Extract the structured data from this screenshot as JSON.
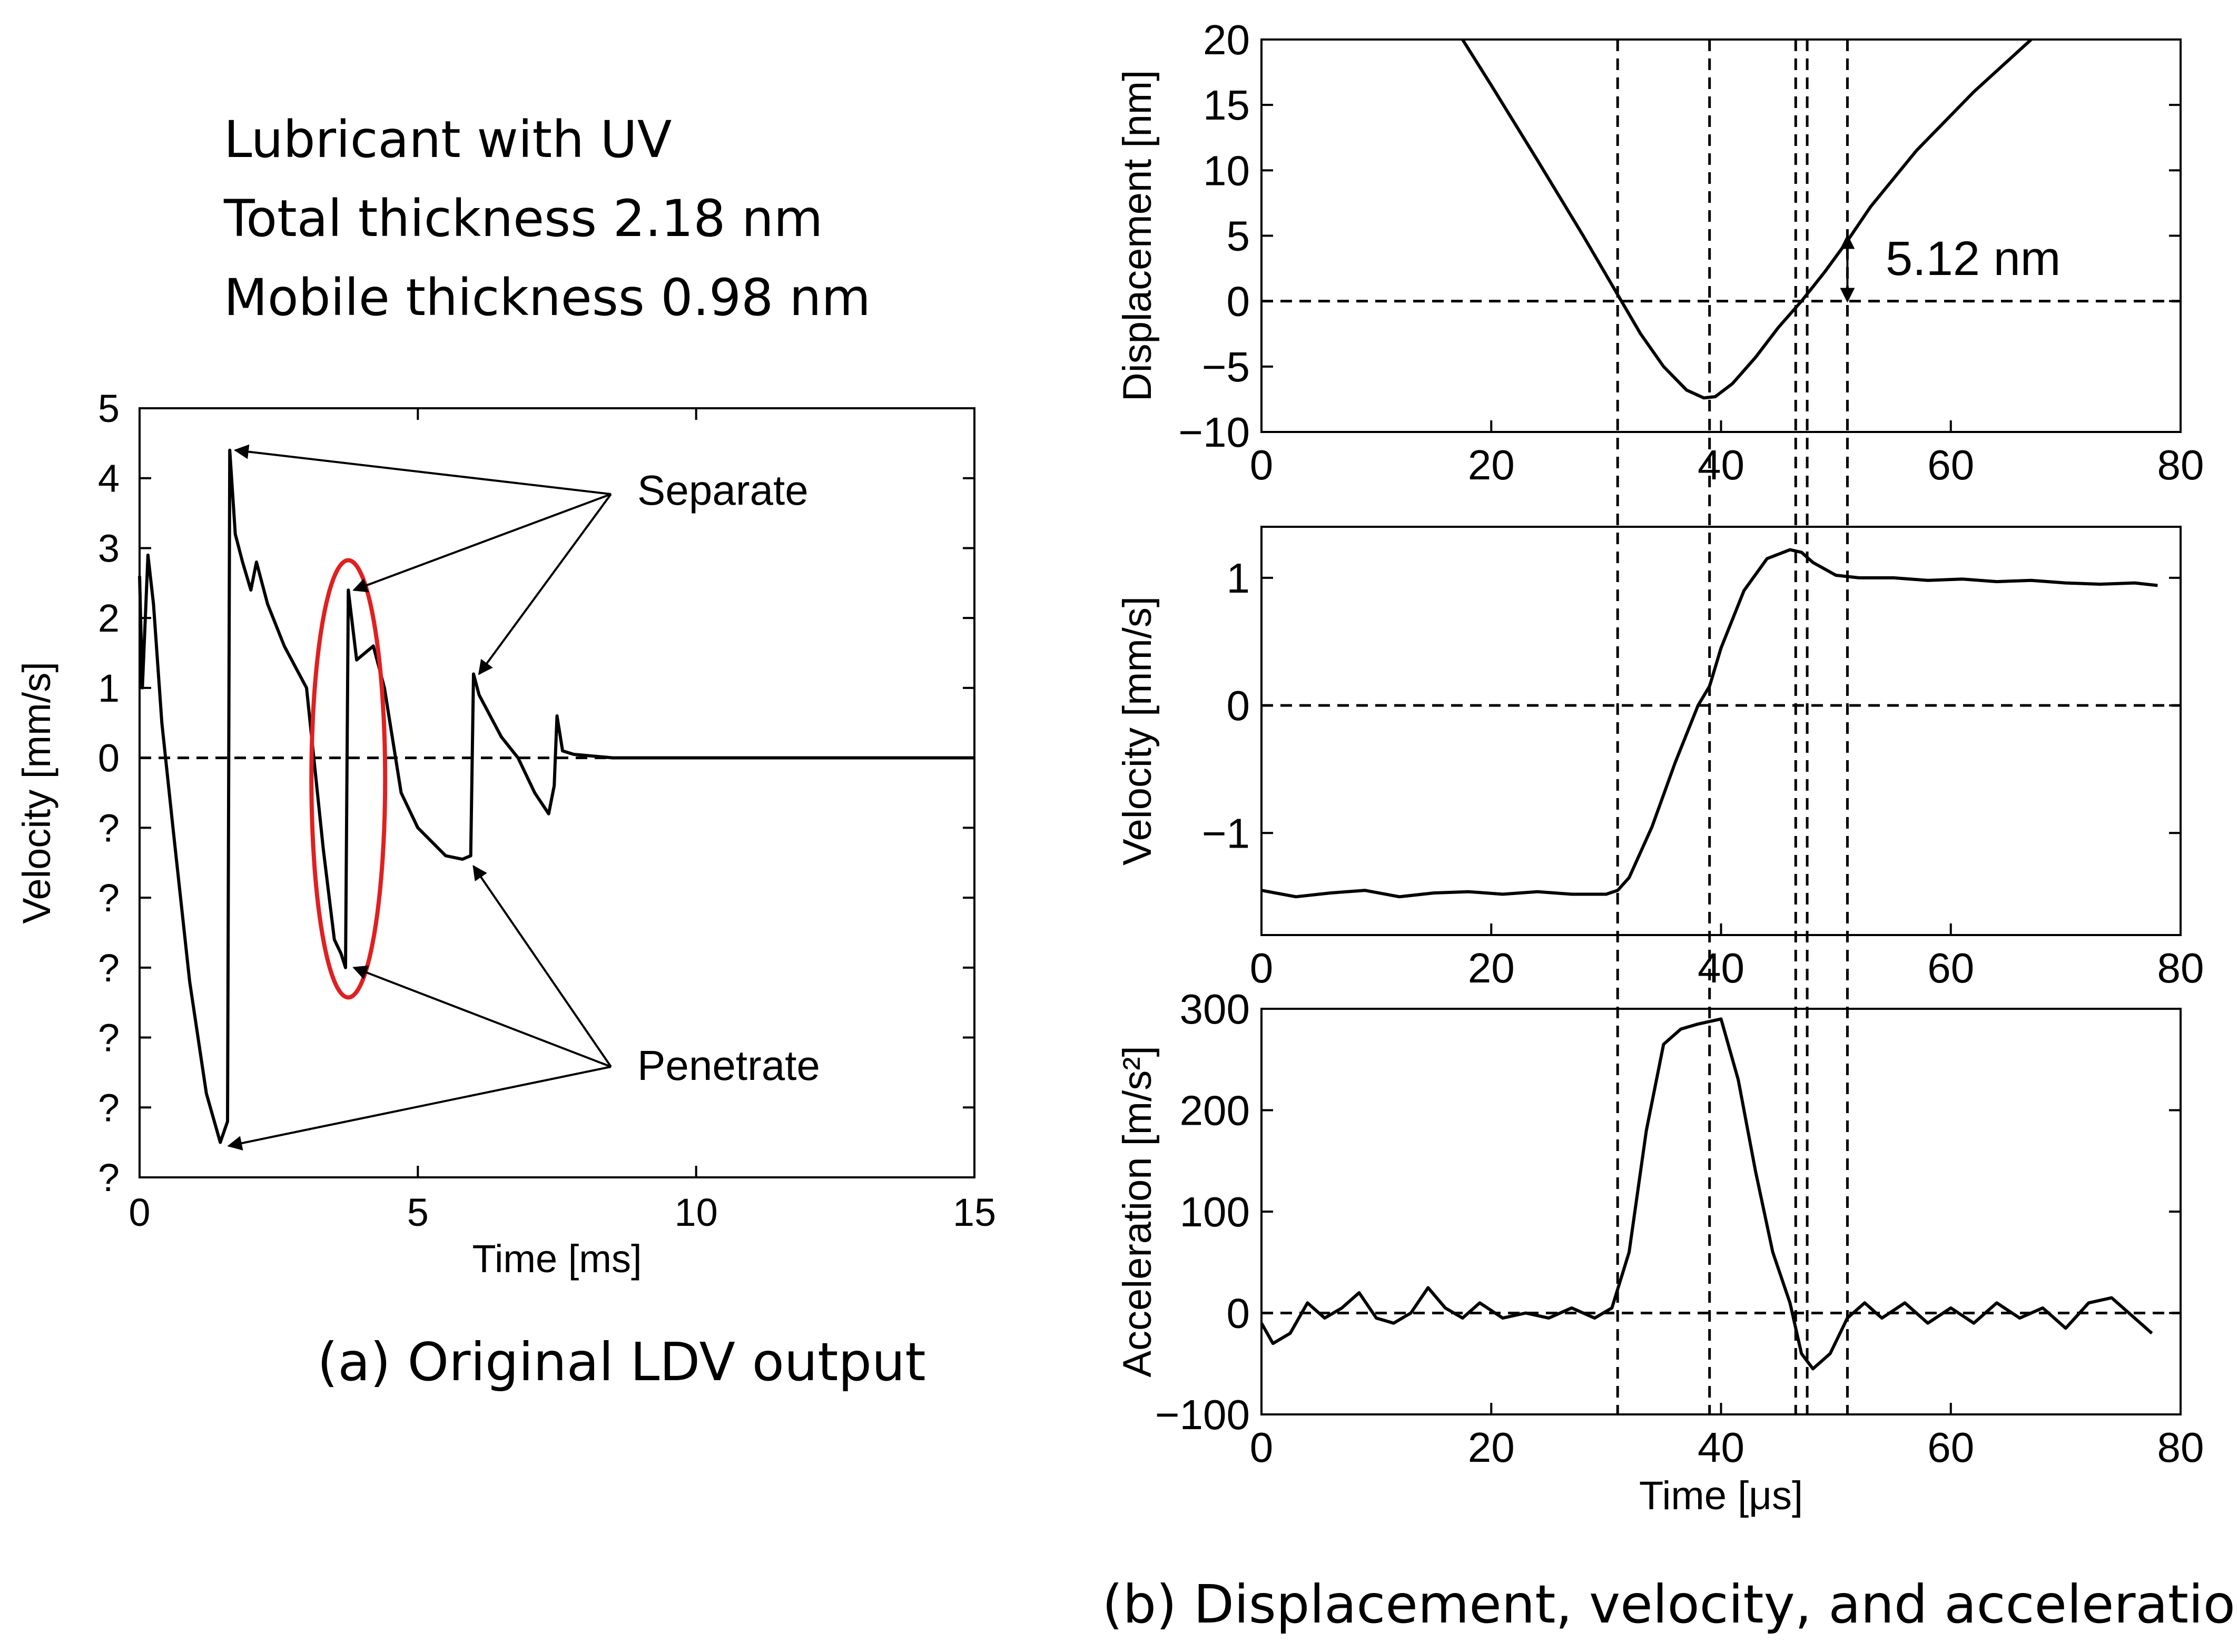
{
  "annotation_block": {
    "line1": "Lubricant  with UV",
    "line2": "Total thickness 2.18 nm",
    "line3": "Mobile thickness 0.98 nm"
  },
  "captions": {
    "a": "(a) Original LDV output",
    "b": "(b) Displacement, velocity, and acceleration"
  },
  "annotations": {
    "separate": "Separate",
    "penetrate": "Penetrate",
    "gap": "5.12 nm"
  },
  "colors": {
    "blue_line": "#1f1fe0",
    "red_line": "#e01f1f",
    "ellipse": "#e02020"
  },
  "chart_data": [
    {
      "id": "a",
      "type": "line",
      "xlabel": "Time [ms]",
      "ylabel": "Velocity [mm/s]",
      "xlim": [
        0,
        15
      ],
      "ylim": [
        -6,
        5
      ],
      "xticks": [
        "0",
        "5",
        "10",
        "15"
      ],
      "yticks": [
        "5",
        "4",
        "3",
        "2",
        "1",
        "0",
        "?",
        "?",
        "?",
        "?",
        "?",
        "?"
      ],
      "zero_line": "dashed",
      "series": [
        {
          "name": "LDV velocity",
          "x": [
            0,
            0.05,
            0.15,
            0.25,
            0.4,
            0.6,
            0.9,
            1.2,
            1.45,
            1.58,
            1.62,
            1.72,
            1.85,
            2.0,
            2.1,
            2.3,
            2.6,
            3.0,
            3.3,
            3.5,
            3.62,
            3.7,
            3.75,
            3.78,
            3.9,
            4.2,
            4.4,
            4.7,
            5.0,
            5.5,
            5.8,
            5.95,
            6.0,
            6.1,
            6.3,
            6.5,
            6.8,
            7.1,
            7.35,
            7.45,
            7.5,
            7.6,
            7.8,
            8.5,
            10,
            12,
            15
          ],
          "y": [
            2.6,
            1.0,
            2.9,
            2.2,
            0.5,
            -1.0,
            -3.2,
            -4.8,
            -5.5,
            -5.2,
            4.4,
            3.2,
            2.8,
            2.4,
            2.8,
            2.2,
            1.6,
            1.0,
            -1.3,
            -2.6,
            -2.8,
            -3.0,
            2.4,
            2.2,
            1.4,
            1.6,
            1.0,
            -0.5,
            -1.0,
            -1.4,
            -1.45,
            -1.4,
            1.2,
            0.9,
            0.6,
            0.3,
            0.0,
            -0.5,
            -0.8,
            -0.4,
            0.6,
            0.1,
            0.05,
            0.0,
            0.0,
            0.0,
            0.0
          ]
        }
      ]
    },
    {
      "id": "b1",
      "type": "line",
      "xlabel": "",
      "ylabel": "Displacement [nm]",
      "xlim": [
        0,
        80
      ],
      "ylim": [
        -10,
        20
      ],
      "xticks": [
        "0",
        "20",
        "40",
        "60",
        "80"
      ],
      "yticks": [
        "20",
        "15",
        "10",
        "5",
        "0",
        "−10"
      ],
      "ytick_minus5": "−5",
      "series": [
        {
          "name": "Displacement",
          "x": [
            17.5,
            20,
            24,
            28,
            31,
            33,
            35,
            37,
            38.5,
            39.5,
            41,
            43,
            45,
            47,
            49,
            51,
            53,
            57,
            62,
            67
          ],
          "y": [
            20,
            16.5,
            10.8,
            5.0,
            0.5,
            -2.5,
            -5.0,
            -6.8,
            -7.4,
            -7.3,
            -6.3,
            -4.3,
            -2.0,
            0.0,
            2.2,
            4.6,
            7.2,
            11.5,
            16.0,
            20.0
          ]
        }
      ],
      "vlines": [
        31,
        39,
        46.5,
        47.5,
        51
      ]
    },
    {
      "id": "b2",
      "type": "line",
      "xlabel": "",
      "ylabel": "Velocity [mm/s]",
      "xlim": [
        0,
        80
      ],
      "ylim": [
        -1.8,
        1.4
      ],
      "xticks": [
        "0",
        "20",
        "40",
        "60",
        "80"
      ],
      "yticks": [
        "1",
        "0",
        "−1"
      ],
      "series": [
        {
          "name": "Velocity",
          "x": [
            0,
            3,
            6,
            9,
            12,
            15,
            18,
            21,
            24,
            27,
            30,
            31,
            32,
            34,
            36,
            38,
            39,
            40,
            42,
            44,
            46,
            47,
            48,
            50,
            52,
            55,
            58,
            61,
            64,
            67,
            70,
            73,
            76,
            78
          ],
          "y": [
            -1.45,
            -1.5,
            -1.47,
            -1.45,
            -1.5,
            -1.47,
            -1.46,
            -1.48,
            -1.46,
            -1.48,
            -1.48,
            -1.45,
            -1.35,
            -0.95,
            -0.45,
            0.0,
            0.15,
            0.45,
            0.9,
            1.15,
            1.22,
            1.2,
            1.12,
            1.02,
            1.0,
            1.0,
            0.98,
            0.99,
            0.97,
            0.98,
            0.96,
            0.95,
            0.96,
            0.94
          ]
        }
      ],
      "vlines": [
        31,
        39,
        46.5,
        47.5,
        51
      ]
    },
    {
      "id": "b3",
      "type": "line",
      "xlabel": "Time  [μs]",
      "ylabel": "Acceleration [m/s²]",
      "xlim": [
        0,
        80
      ],
      "ylim": [
        -100,
        300
      ],
      "xticks": [
        "0",
        "20",
        "40",
        "60",
        "80"
      ],
      "yticks": [
        "300",
        "200",
        "100",
        "0",
        "−100"
      ],
      "series": [
        {
          "name": "Acceleration",
          "x": [
            0,
            1,
            2.5,
            4,
            5.5,
            7,
            8.5,
            10,
            11.5,
            13,
            14.5,
            16,
            17.5,
            19,
            21,
            23,
            25,
            27,
            29,
            30.5,
            32,
            33.5,
            35,
            36.5,
            38,
            40,
            41.5,
            43,
            44.5,
            46,
            47,
            48,
            49.5,
            51,
            52.5,
            54,
            56,
            58,
            60,
            62,
            64,
            66,
            68,
            70,
            72,
            74,
            76,
            77.5
          ],
          "y": [
            -10,
            -30,
            -20,
            10,
            -5,
            5,
            20,
            -5,
            -10,
            0,
            25,
            5,
            -5,
            10,
            -5,
            0,
            -5,
            5,
            -5,
            5,
            60,
            180,
            265,
            280,
            285,
            290,
            230,
            140,
            60,
            10,
            -40,
            -55,
            -40,
            -5,
            10,
            -5,
            10,
            -10,
            5,
            -10,
            10,
            -5,
            5,
            -15,
            10,
            15,
            -5,
            -20
          ]
        }
      ],
      "vlines": [
        31,
        39,
        46.5,
        47.5,
        51
      ]
    }
  ]
}
